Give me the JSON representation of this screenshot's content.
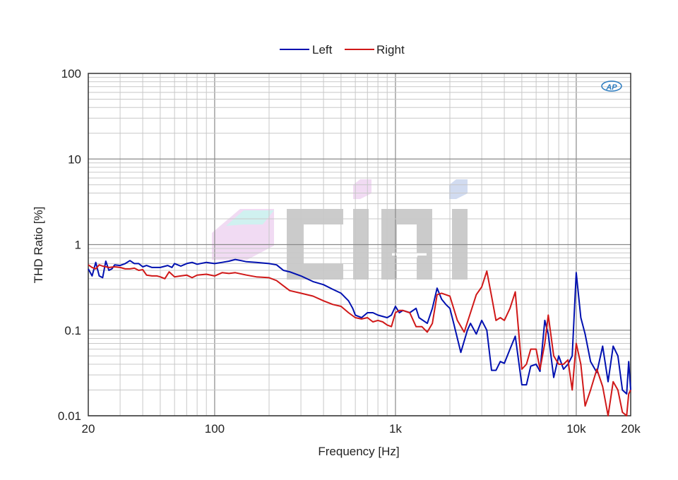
{
  "chart_data": {
    "type": "line",
    "title": "",
    "xlabel": "Frequency [Hz]",
    "ylabel": "THD Ratio [%]",
    "x_scale": "log",
    "y_scale": "log",
    "xlim": [
      20,
      20000
    ],
    "ylim": [
      0.01,
      100
    ],
    "x_ticks": [
      {
        "value": 20,
        "label": "20"
      },
      {
        "value": 100,
        "label": "100"
      },
      {
        "value": 1000,
        "label": "1k"
      },
      {
        "value": 10000,
        "label": "10k"
      },
      {
        "value": 20000,
        "label": "20k"
      }
    ],
    "y_ticks": [
      {
        "value": 0.01,
        "label": "0.01"
      },
      {
        "value": 0.1,
        "label": "0.1"
      },
      {
        "value": 1,
        "label": "1"
      },
      {
        "value": 10,
        "label": "10"
      },
      {
        "value": 100,
        "label": "100"
      }
    ],
    "grid": true,
    "legend_position": "top-center",
    "series": [
      {
        "name": "Left",
        "color": "#0010b0",
        "points": [
          [
            20,
            0.52
          ],
          [
            21,
            0.43
          ],
          [
            22,
            0.62
          ],
          [
            23,
            0.43
          ],
          [
            24,
            0.41
          ],
          [
            25,
            0.64
          ],
          [
            26,
            0.5
          ],
          [
            27,
            0.52
          ],
          [
            28,
            0.58
          ],
          [
            30,
            0.57
          ],
          [
            32,
            0.6
          ],
          [
            34,
            0.65
          ],
          [
            36,
            0.6
          ],
          [
            38,
            0.6
          ],
          [
            40,
            0.55
          ],
          [
            42,
            0.57
          ],
          [
            45,
            0.54
          ],
          [
            50,
            0.54
          ],
          [
            55,
            0.57
          ],
          [
            58,
            0.54
          ],
          [
            60,
            0.6
          ],
          [
            65,
            0.56
          ],
          [
            70,
            0.6
          ],
          [
            75,
            0.62
          ],
          [
            80,
            0.59
          ],
          [
            90,
            0.62
          ],
          [
            100,
            0.6
          ],
          [
            110,
            0.62
          ],
          [
            120,
            0.64
          ],
          [
            130,
            0.67
          ],
          [
            140,
            0.65
          ],
          [
            150,
            0.63
          ],
          [
            170,
            0.62
          ],
          [
            200,
            0.6
          ],
          [
            220,
            0.58
          ],
          [
            240,
            0.5
          ],
          [
            260,
            0.48
          ],
          [
            300,
            0.43
          ],
          [
            350,
            0.37
          ],
          [
            400,
            0.34
          ],
          [
            450,
            0.3
          ],
          [
            500,
            0.27
          ],
          [
            550,
            0.22
          ],
          [
            580,
            0.18
          ],
          [
            600,
            0.15
          ],
          [
            650,
            0.14
          ],
          [
            700,
            0.16
          ],
          [
            750,
            0.16
          ],
          [
            800,
            0.15
          ],
          [
            900,
            0.14
          ],
          [
            950,
            0.15
          ],
          [
            1000,
            0.19
          ],
          [
            1050,
            0.16
          ],
          [
            1100,
            0.17
          ],
          [
            1200,
            0.16
          ],
          [
            1300,
            0.18
          ],
          [
            1350,
            0.14
          ],
          [
            1500,
            0.12
          ],
          [
            1600,
            0.18
          ],
          [
            1700,
            0.31
          ],
          [
            1800,
            0.23
          ],
          [
            1900,
            0.2
          ],
          [
            2000,
            0.18
          ],
          [
            2100,
            0.12
          ],
          [
            2300,
            0.055
          ],
          [
            2500,
            0.1
          ],
          [
            2600,
            0.12
          ],
          [
            2800,
            0.09
          ],
          [
            3000,
            0.13
          ],
          [
            3200,
            0.1
          ],
          [
            3400,
            0.034
          ],
          [
            3600,
            0.034
          ],
          [
            3800,
            0.043
          ],
          [
            4000,
            0.041
          ],
          [
            4300,
            0.06
          ],
          [
            4600,
            0.085
          ],
          [
            5000,
            0.023
          ],
          [
            5300,
            0.023
          ],
          [
            5600,
            0.038
          ],
          [
            6000,
            0.04
          ],
          [
            6300,
            0.033
          ],
          [
            6700,
            0.13
          ],
          [
            7000,
            0.09
          ],
          [
            7500,
            0.028
          ],
          [
            8000,
            0.05
          ],
          [
            8500,
            0.035
          ],
          [
            9000,
            0.04
          ],
          [
            9500,
            0.05
          ],
          [
            10000,
            0.47
          ],
          [
            10600,
            0.14
          ],
          [
            11200,
            0.09
          ],
          [
            12000,
            0.043
          ],
          [
            13000,
            0.032
          ],
          [
            14000,
            0.065
          ],
          [
            15000,
            0.025
          ],
          [
            16000,
            0.065
          ],
          [
            17000,
            0.05
          ],
          [
            18000,
            0.02
          ],
          [
            19000,
            0.018
          ],
          [
            19500,
            0.043
          ],
          [
            20000,
            0.02
          ]
        ]
      },
      {
        "name": "Right",
        "color": "#d01818",
        "points": [
          [
            20,
            0.58
          ],
          [
            21,
            0.54
          ],
          [
            22,
            0.52
          ],
          [
            23,
            0.58
          ],
          [
            24,
            0.56
          ],
          [
            26,
            0.54
          ],
          [
            28,
            0.55
          ],
          [
            30,
            0.54
          ],
          [
            32,
            0.52
          ],
          [
            34,
            0.52
          ],
          [
            36,
            0.53
          ],
          [
            38,
            0.5
          ],
          [
            40,
            0.51
          ],
          [
            42,
            0.44
          ],
          [
            45,
            0.43
          ],
          [
            48,
            0.43
          ],
          [
            50,
            0.42
          ],
          [
            53,
            0.4
          ],
          [
            56,
            0.48
          ],
          [
            60,
            0.42
          ],
          [
            65,
            0.43
          ],
          [
            70,
            0.44
          ],
          [
            75,
            0.41
          ],
          [
            80,
            0.44
          ],
          [
            90,
            0.45
          ],
          [
            100,
            0.43
          ],
          [
            110,
            0.47
          ],
          [
            120,
            0.46
          ],
          [
            130,
            0.47
          ],
          [
            150,
            0.44
          ],
          [
            170,
            0.42
          ],
          [
            200,
            0.41
          ],
          [
            220,
            0.38
          ],
          [
            240,
            0.33
          ],
          [
            260,
            0.29
          ],
          [
            300,
            0.27
          ],
          [
            350,
            0.25
          ],
          [
            400,
            0.22
          ],
          [
            450,
            0.2
          ],
          [
            500,
            0.19
          ],
          [
            550,
            0.16
          ],
          [
            600,
            0.14
          ],
          [
            650,
            0.135
          ],
          [
            700,
            0.14
          ],
          [
            750,
            0.125
          ],
          [
            800,
            0.13
          ],
          [
            850,
            0.125
          ],
          [
            900,
            0.115
          ],
          [
            950,
            0.11
          ],
          [
            1000,
            0.16
          ],
          [
            1050,
            0.17
          ],
          [
            1100,
            0.17
          ],
          [
            1200,
            0.16
          ],
          [
            1300,
            0.11
          ],
          [
            1400,
            0.11
          ],
          [
            1500,
            0.095
          ],
          [
            1600,
            0.12
          ],
          [
            1700,
            0.26
          ],
          [
            1800,
            0.27
          ],
          [
            2000,
            0.25
          ],
          [
            2200,
            0.13
          ],
          [
            2400,
            0.095
          ],
          [
            2600,
            0.16
          ],
          [
            2800,
            0.26
          ],
          [
            3000,
            0.32
          ],
          [
            3200,
            0.49
          ],
          [
            3400,
            0.25
          ],
          [
            3600,
            0.13
          ],
          [
            3800,
            0.14
          ],
          [
            4000,
            0.13
          ],
          [
            4300,
            0.18
          ],
          [
            4600,
            0.28
          ],
          [
            5000,
            0.035
          ],
          [
            5300,
            0.04
          ],
          [
            5600,
            0.06
          ],
          [
            6000,
            0.06
          ],
          [
            6300,
            0.035
          ],
          [
            6700,
            0.07
          ],
          [
            7000,
            0.15
          ],
          [
            7500,
            0.05
          ],
          [
            8000,
            0.04
          ],
          [
            8500,
            0.04
          ],
          [
            9000,
            0.045
          ],
          [
            9500,
            0.02
          ],
          [
            10000,
            0.07
          ],
          [
            10600,
            0.04
          ],
          [
            11200,
            0.013
          ],
          [
            12000,
            0.02
          ],
          [
            13000,
            0.035
          ],
          [
            14000,
            0.022
          ],
          [
            15000,
            0.01
          ],
          [
            16000,
            0.025
          ],
          [
            17000,
            0.02
          ],
          [
            18000,
            0.011
          ],
          [
            19000,
            0.01
          ],
          [
            19500,
            0.018
          ],
          [
            20000,
            0.02
          ]
        ]
      }
    ],
    "legend": [
      {
        "label": "Left",
        "color": "#0010b0"
      },
      {
        "label": "Right",
        "color": "#d01818"
      }
    ]
  },
  "logo_text": "AP",
  "watermark_text": "CIHI"
}
